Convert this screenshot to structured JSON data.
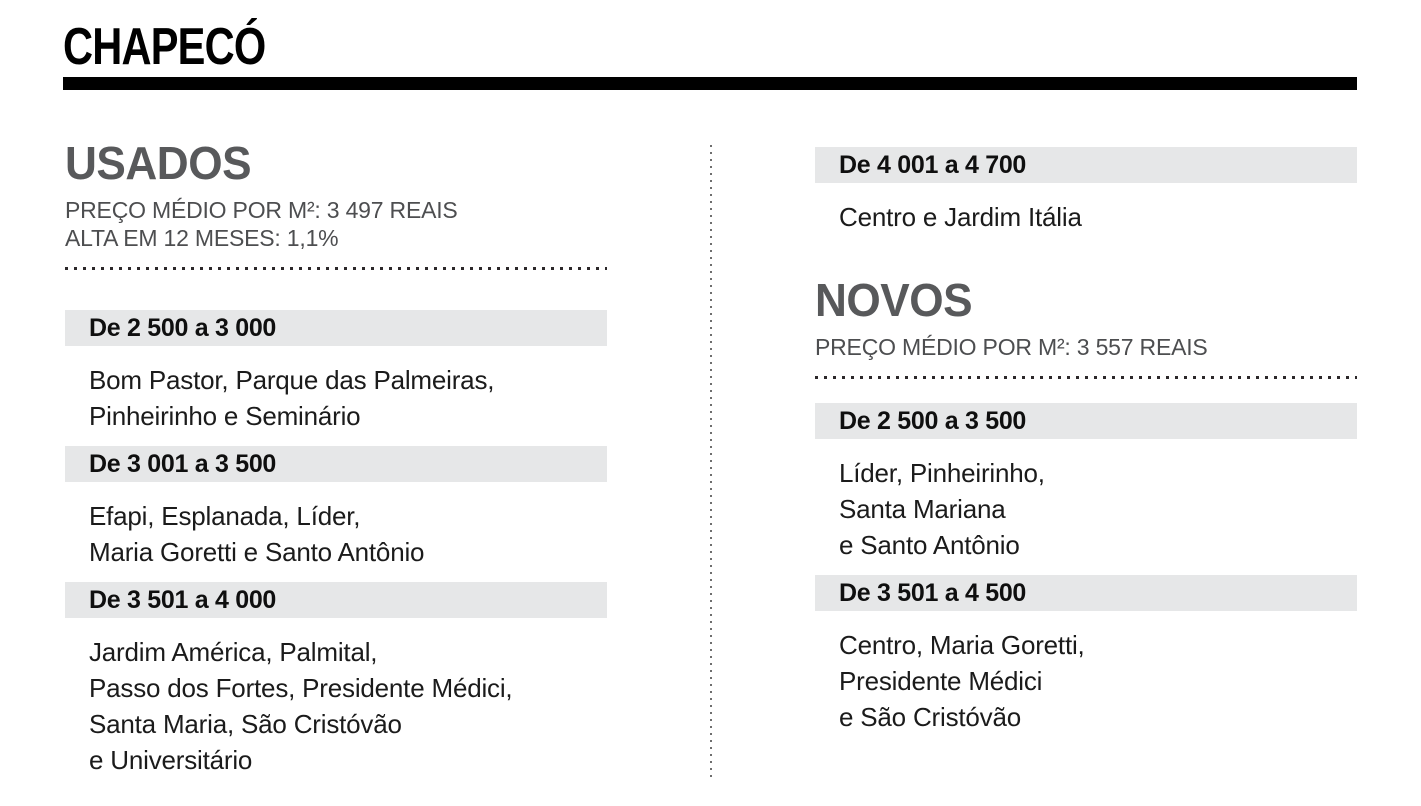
{
  "page": {
    "title": "CHAPECÓ"
  },
  "colors": {
    "band_background": "#e6e7e8",
    "heading_gray": "#58595b",
    "body_text": "#1b1b1b",
    "rule_black": "#000000"
  },
  "usados": {
    "heading": "USADOS",
    "subtitle_price": "PREÇO MÉDIO POR M²: 3 497 REAIS",
    "subtitle_change": "ALTA EM 12 MESES: 1,1%",
    "bands": [
      {
        "range": "De 2 500 a 3 000",
        "areas": [
          "Bom Pastor, Parque das Palmeiras,",
          "Pinheirinho e Seminário"
        ]
      },
      {
        "range": "De 3 001 a 3 500",
        "areas": [
          "Efapi, Esplanada, Líder,",
          "Maria Goretti e Santo Antônio"
        ]
      },
      {
        "range": "De 3 501 a 4 000",
        "areas": [
          "Jardim América, Palmital,",
          "Passo dos Fortes, Presidente Médici,",
          "Santa Maria, São Cristóvão",
          "e Universitário"
        ]
      },
      {
        "range": "De 4 001 a 4 700",
        "areas": [
          "Centro e Jardim Itália"
        ]
      }
    ]
  },
  "novos": {
    "heading": "NOVOS",
    "subtitle_price": "PREÇO MÉDIO POR M²: 3 557 REAIS",
    "bands": [
      {
        "range": "De 2 500 a 3 500",
        "areas": [
          "Líder, Pinheirinho,",
          "Santa Mariana",
          "e Santo Antônio"
        ]
      },
      {
        "range": "De 3 501 a 4 500",
        "areas": [
          "Centro, Maria Goretti,",
          "Presidente Médici",
          "e São Cristóvão"
        ]
      }
    ]
  }
}
